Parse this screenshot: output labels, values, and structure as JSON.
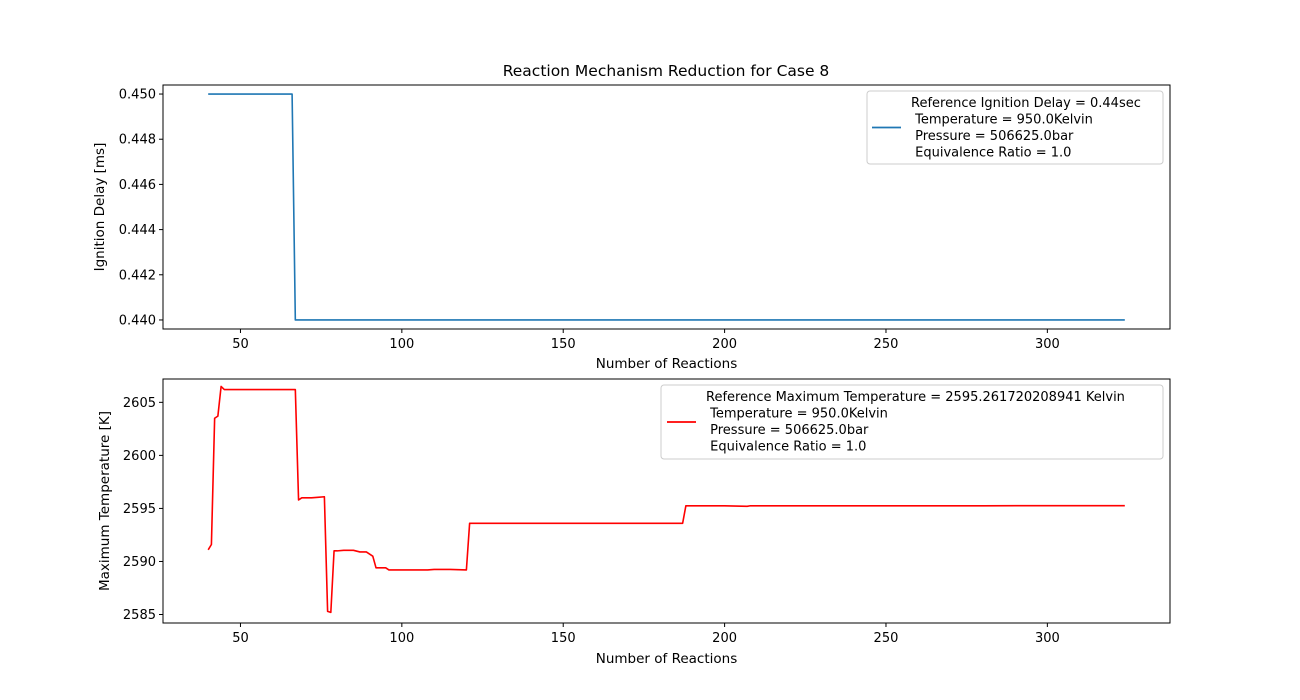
{
  "figure": {
    "title": "Reaction Mechanism Reduction for Case 8"
  },
  "chart_data": [
    {
      "type": "line",
      "title": "Reaction Mechanism Reduction for Case 8",
      "xlabel": "Number of Reactions",
      "ylabel": "Ignition Delay [ms]",
      "xlim": [
        26,
        338
      ],
      "ylim": [
        0.4396,
        0.4504
      ],
      "xticks": [
        50,
        100,
        150,
        200,
        250,
        300
      ],
      "xtick_labels": [
        "50",
        "100",
        "150",
        "200",
        "250",
        "300"
      ],
      "yticks": [
        0.44,
        0.442,
        0.444,
        0.446,
        0.448,
        0.45
      ],
      "ytick_labels": [
        "0.440",
        "0.442",
        "0.444",
        "0.446",
        "0.448",
        "0.450"
      ],
      "grid": false,
      "legend_position": "upper right",
      "series": [
        {
          "legend_lines": [
            "Reference Ignition Delay = 0.44sec",
            " Temperature = 950.0Kelvin",
            " Pressure = 506625.0bar",
            " Equivalence Ratio = 1.0"
          ],
          "color": "#1f77b4",
          "x": [
            40,
            66,
            67,
            324
          ],
          "y": [
            0.45,
            0.45,
            0.44,
            0.44
          ]
        }
      ]
    },
    {
      "type": "line",
      "xlabel": "Number of Reactions",
      "ylabel": "Maximum Temperature [K]",
      "xlim": [
        26,
        338
      ],
      "ylim": [
        2584.2,
        2607.2
      ],
      "xticks": [
        50,
        100,
        150,
        200,
        250,
        300
      ],
      "xtick_labels": [
        "50",
        "100",
        "150",
        "200",
        "250",
        "300"
      ],
      "yticks": [
        2585,
        2590,
        2595,
        2600,
        2605
      ],
      "ytick_labels": [
        "2585",
        "2590",
        "2595",
        "2600",
        "2605"
      ],
      "grid": false,
      "legend_position": "upper right",
      "series": [
        {
          "legend_lines": [
            "Reference Maximum Temperature = 2595.261720208941 Kelvin",
            " Temperature = 950.0Kelvin",
            " Pressure = 506625.0bar",
            " Equivalence Ratio = 1.0"
          ],
          "color": "#ff0000",
          "x": [
            40,
            41,
            42,
            43,
            44,
            45,
            46,
            50,
            60,
            67,
            68,
            69,
            70,
            72,
            74,
            76,
            77,
            78,
            79,
            80,
            82,
            85,
            87,
            89,
            90,
            91,
            92,
            94,
            95,
            96,
            100,
            108,
            110,
            115,
            120,
            121,
            125,
            150,
            170,
            187,
            188,
            190,
            200,
            207,
            208,
            210,
            250,
            280,
            300,
            324
          ],
          "y": [
            2591.1,
            2591.6,
            2603.5,
            2603.7,
            2606.5,
            2606.2,
            2606.2,
            2606.2,
            2606.2,
            2606.2,
            2595.8,
            2596.0,
            2596.0,
            2596.0,
            2596.05,
            2596.1,
            2585.3,
            2585.2,
            2591.0,
            2591.0,
            2591.05,
            2591.05,
            2590.9,
            2590.9,
            2590.7,
            2590.5,
            2589.4,
            2589.4,
            2589.4,
            2589.2,
            2589.2,
            2589.2,
            2589.25,
            2589.25,
            2589.2,
            2593.6,
            2593.6,
            2593.6,
            2593.6,
            2593.6,
            2595.25,
            2595.25,
            2595.25,
            2595.2,
            2595.25,
            2595.25,
            2595.25,
            2595.25,
            2595.26,
            2595.26
          ]
        }
      ]
    }
  ]
}
